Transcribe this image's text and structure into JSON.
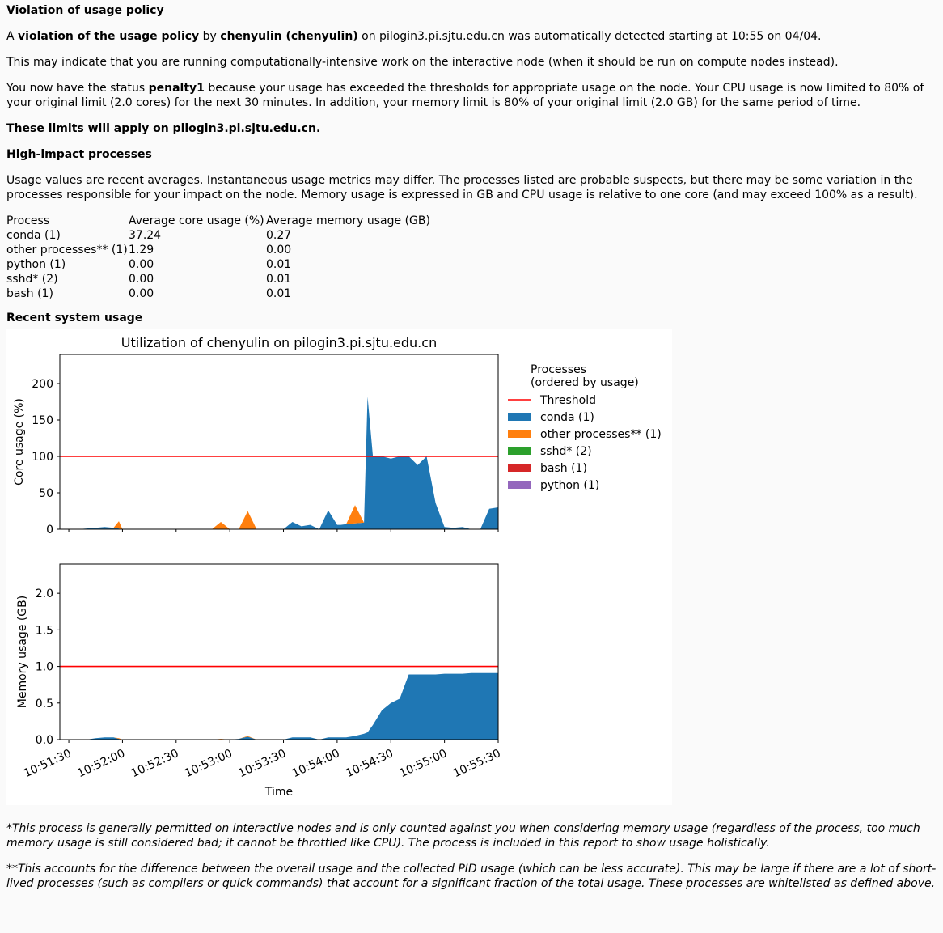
{
  "heading": "Violation of usage policy",
  "intro": {
    "a": "A ",
    "violation": "violation of the usage policy",
    "by": " by ",
    "user": "chenyulin (chenyulin)",
    "rest": " on pilogin3.pi.sjtu.edu.cn was automatically detected starting at 10:55 on 04/04."
  },
  "para_compute": "This may indicate that you are running computationally-intensive work on the interactive node (when it should be run on compute nodes instead).",
  "status": {
    "pre": "You now have the status ",
    "name": "penalty1",
    "post": " because your usage has exceeded the thresholds for appropriate usage on the node. Your CPU usage is now limited to 80% of your original limit (2.0 cores) for the next 30 minutes. In addition, your memory limit is 80% of your original limit (2.0 GB) for the same period of time."
  },
  "limits_apply": "These limits will apply on pilogin3.pi.sjtu.edu.cn.",
  "high_impact_heading": "High-impact processes",
  "usage_note": "Usage values are recent averages. Instantaneous usage metrics may differ. The processes listed are probable suspects, but there may be some variation in the processes responsible for your impact on the node. Memory usage is expressed in GB and CPU usage is relative to one core (and may exceed 100% as a result).",
  "process_table": {
    "headers": [
      "Process",
      "Average core usage (%)",
      "Average memory usage (GB)"
    ],
    "rows": [
      [
        "conda (1)",
        "37.24",
        "0.27"
      ],
      [
        "other processes** (1)",
        "1.29",
        "0.00"
      ],
      [
        "python (1)",
        "0.00",
        "0.01"
      ],
      [
        "sshd* (2)",
        "0.00",
        "0.01"
      ],
      [
        "bash (1)",
        "0.00",
        "0.01"
      ]
    ]
  },
  "recent_heading": "Recent system usage",
  "footnote1": "*This process is generally permitted on interactive nodes and is only counted against you when considering memory usage (regardless of the process, too much memory usage is still considered bad; it cannot be throttled like CPU). The process is included in this report to show usage holistically.",
  "footnote2": "**This accounts for the difference between the overall usage and the collected PID usage (which can be less accurate). This may be large if there are a lot of short-lived processes (such as compilers or quick commands) that account for a significant fraction of the total usage. These processes are whitelisted as defined above.",
  "chart_data": [
    {
      "type": "area",
      "title": "Utilization of chenyulin on pilogin3.pi.sjtu.edu.cn",
      "xlabel": "",
      "ylabel": "Core usage (%)",
      "xlim": [
        "10:51:25",
        "10:55:30"
      ],
      "ylim": [
        0,
        240
      ],
      "yticks": [
        0,
        50,
        100,
        150,
        200
      ],
      "threshold": 100,
      "legend_title": "Processes\n(ordered by usage)",
      "legend_position": "right",
      "legend": [
        "Threshold",
        "conda (1)",
        "other processes** (1)",
        "sshd* (2)",
        "bash (1)",
        "python (1)"
      ],
      "colors": {
        "threshold": "#ff0000",
        "conda (1)": "#1f77b4",
        "other processes** (1)": "#ff7f0e",
        "sshd* (2)": "#2ca02c",
        "bash (1)": "#d62728",
        "python (1)": "#9467bd"
      },
      "x": [
        "10:51:35",
        "10:51:40",
        "10:51:45",
        "10:51:50",
        "10:51:55",
        "10:51:58",
        "10:52:00",
        "10:52:05",
        "10:52:30",
        "10:52:45",
        "10:52:50",
        "10:52:55",
        "10:53:00",
        "10:53:05",
        "10:53:10",
        "10:53:15",
        "10:53:30",
        "10:53:35",
        "10:53:40",
        "10:53:45",
        "10:53:50",
        "10:53:55",
        "10:54:00",
        "10:54:02",
        "10:54:05",
        "10:54:10",
        "10:54:15",
        "10:54:17",
        "10:54:20",
        "10:54:25",
        "10:54:30",
        "10:54:35",
        "10:54:40",
        "10:54:45",
        "10:54:50",
        "10:54:55",
        "10:55:00",
        "10:55:05",
        "10:55:10",
        "10:55:15",
        "10:55:20",
        "10:55:25",
        "10:55:30"
      ],
      "series": [
        {
          "name": "conda (1)",
          "values": [
            0,
            1,
            2,
            3,
            2,
            1,
            0,
            0,
            0,
            0,
            0,
            0,
            0,
            0,
            0,
            0,
            0,
            10,
            4,
            6,
            0,
            26,
            6,
            6,
            7,
            8,
            9,
            182,
            100,
            100,
            97,
            100,
            100,
            88,
            100,
            36,
            3,
            2,
            3,
            0,
            0,
            28,
            30
          ]
        },
        {
          "name": "other processes** (1)",
          "values": [
            0,
            0,
            0,
            0,
            0,
            10,
            0,
            0,
            0,
            0,
            0,
            10,
            0,
            0,
            25,
            0,
            0,
            0,
            0,
            0,
            0,
            0,
            0,
            0,
            0,
            25,
            0,
            0,
            0,
            0,
            0,
            0,
            0,
            0,
            0,
            0,
            0,
            0,
            0,
            0,
            0,
            0,
            0
          ]
        }
      ]
    },
    {
      "type": "area",
      "title": "",
      "xlabel": "Time",
      "ylabel": "Memory usage (GB)",
      "xlim": [
        "10:51:25",
        "10:55:30"
      ],
      "ylim": [
        0,
        2.4
      ],
      "yticks": [
        0.0,
        0.5,
        1.0,
        1.5,
        2.0
      ],
      "xticks": [
        "10:51:30",
        "10:52:00",
        "10:52:30",
        "10:53:00",
        "10:53:30",
        "10:54:00",
        "10:54:30",
        "10:55:00",
        "10:55:30"
      ],
      "threshold": 1.0,
      "series": [
        {
          "name": "conda (1)",
          "values": [
            0,
            0,
            0.02,
            0.03,
            0.03,
            0.01,
            0,
            0,
            0,
            0,
            0,
            0,
            0,
            0.01,
            0.04,
            0,
            0,
            0.03,
            0.03,
            0.03,
            0,
            0.03,
            0.03,
            0.03,
            0.03,
            0.05,
            0.08,
            0.1,
            0.2,
            0.4,
            0.5,
            0.56,
            0.89,
            0.89,
            0.89,
            0.89,
            0.9,
            0.9,
            0.9,
            0.91,
            0.91,
            0.91,
            0.91
          ]
        },
        {
          "name": "other processes** (1)",
          "values": [
            0,
            0,
            0,
            0,
            0,
            0.01,
            0,
            0,
            0,
            0,
            0,
            0.01,
            0,
            0,
            0.01,
            0,
            0,
            0,
            0,
            0,
            0,
            0,
            0,
            0,
            0,
            0,
            0,
            0,
            0,
            0,
            0,
            0,
            0,
            0,
            0,
            0,
            0,
            0,
            0,
            0,
            0,
            0,
            0
          ]
        }
      ]
    }
  ]
}
